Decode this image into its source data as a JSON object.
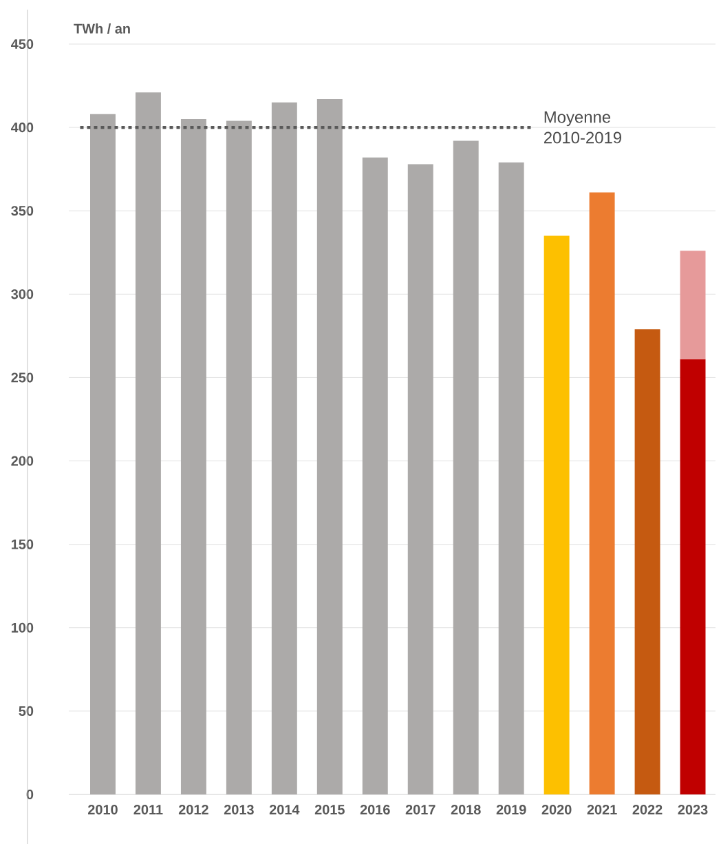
{
  "chart_data": {
    "type": "bar",
    "stacked": true,
    "ylabel": "TWh / an",
    "categories": [
      "2010",
      "2011",
      "2012",
      "2013",
      "2014",
      "2015",
      "2016",
      "2017",
      "2018",
      "2019",
      "2020",
      "2021",
      "2022",
      "2023"
    ],
    "series": [
      {
        "values": [
          408,
          421,
          405,
          404,
          415,
          417,
          382,
          378,
          392,
          379,
          335,
          361,
          279,
          261
        ],
        "colors": [
          "#acaaa9",
          "#acaaa9",
          "#acaaa9",
          "#acaaa9",
          "#acaaa9",
          "#acaaa9",
          "#acaaa9",
          "#acaaa9",
          "#acaaa9",
          "#acaaa9",
          "#fdc000",
          "#ec7c30",
          "#c55a11",
          "#c00000"
        ]
      },
      {
        "values": [
          null,
          null,
          null,
          null,
          null,
          null,
          null,
          null,
          null,
          null,
          null,
          null,
          null,
          65
        ],
        "color": "#e69a9a"
      }
    ],
    "ylim": [
      0,
      450
    ],
    "yticks": [
      0,
      50,
      100,
      150,
      200,
      250,
      300,
      350,
      400,
      450
    ],
    "grid": "y",
    "ref_lines": [
      {
        "axis": "y",
        "value": 400,
        "label": "Moyenne 2010-2019",
        "color": "#595959",
        "line_style": "dotted"
      }
    ]
  }
}
